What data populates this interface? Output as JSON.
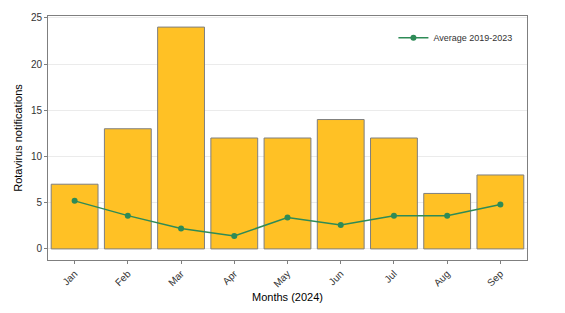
{
  "chart_data": {
    "type": "bar",
    "x_label": "Months (2024)",
    "y_label": "Rotavirus notifications",
    "categories": [
      "Jan",
      "Feb",
      "Mar",
      "Apr",
      "May",
      "Jun",
      "Jul",
      "Aug",
      "Sep"
    ],
    "series": [
      {
        "type": "bar",
        "color": "#ffc125",
        "values": [
          7,
          13,
          24,
          12,
          12,
          14,
          12,
          6,
          8
        ]
      },
      {
        "type": "line",
        "name": "Average 2019-2023",
        "color": "#2e8b57",
        "marker": "circle",
        "line_style": "solid",
        "values": [
          5.2,
          3.6,
          2.2,
          1.4,
          3.4,
          2.6,
          3.6,
          3.6,
          4.8
        ]
      }
    ],
    "ylim": [
      -1.2,
      25.2
    ],
    "yticks": [
      0,
      5,
      10,
      15,
      20,
      25
    ],
    "grid": true,
    "legend": "top right"
  }
}
